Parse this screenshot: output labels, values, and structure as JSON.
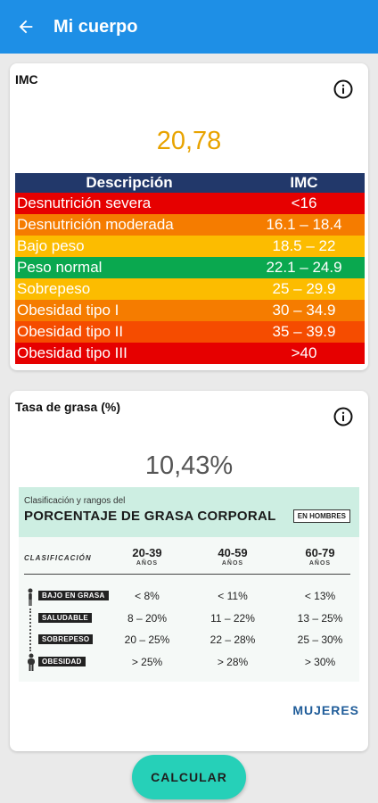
{
  "appbar": {
    "title": "Mi cuerpo",
    "back_icon": "arrow-back-icon"
  },
  "imc_card": {
    "title": "IMC",
    "info_icon": "info-icon",
    "value": "20,78",
    "table": {
      "headers": [
        "Descripción",
        "IMC"
      ],
      "rows": [
        {
          "desc": "Desnutrición severa",
          "range": "<16",
          "color": "#e60000"
        },
        {
          "desc": "Desnutrición moderada",
          "range": "16.1 – 18.4",
          "color": "#f57c00"
        },
        {
          "desc": "Bajo peso",
          "range": "18.5 – 22",
          "color": "#fcbc00"
        },
        {
          "desc": "Peso normal",
          "range": "22.1 – 24.9",
          "color": "#0aa84f"
        },
        {
          "desc": "Sobrepeso",
          "range": "25 – 29.9",
          "color": "#fcbc00"
        },
        {
          "desc": "Obesidad tipo I",
          "range": "30 – 34.9",
          "color": "#f57c00"
        },
        {
          "desc": "Obesidad tipo II",
          "range": "35 – 39.9",
          "color": "#f54c00"
        },
        {
          "desc": "Obesidad tipo III",
          "range": ">40",
          "color": "#e60000"
        }
      ]
    }
  },
  "grasa_card": {
    "title": "Tasa de grasa (%)",
    "info_icon": "info-icon",
    "value": "10,43%",
    "infographic": {
      "subtitle": "Clasificación y rangos del",
      "title": "PORCENTAJE DE GRASA CORPORAL",
      "badge": "EN HOMBRES",
      "class_label": "CLASIFICACIÓN",
      "ages": [
        {
          "range": "20-39",
          "unit": "AÑOS"
        },
        {
          "range": "40-59",
          "unit": "AÑOS"
        },
        {
          "range": "60-79",
          "unit": "AÑOS"
        }
      ],
      "rows": [
        {
          "label": "BAJO EN GRASA",
          "values": [
            "< 8%",
            "< 11%",
            "< 13%"
          ]
        },
        {
          "label": "SALUDABLE",
          "values": [
            "8 – 20%",
            "11 – 22%",
            "13 – 25%"
          ]
        },
        {
          "label": "SOBREPESO",
          "values": [
            "20 – 25%",
            "22 – 28%",
            "25 – 30%"
          ]
        },
        {
          "label": "OBESIDAD",
          "values": [
            "> 25%",
            "> 28%",
            "> 30%"
          ]
        }
      ]
    },
    "link": "MUJERES"
  },
  "button": {
    "label": "CALCULAR"
  },
  "colors": {
    "appbar": "#1e8fe6",
    "accent": "#26d0b8",
    "imc_value": "#e8a300",
    "table_header": "#22386a"
  }
}
